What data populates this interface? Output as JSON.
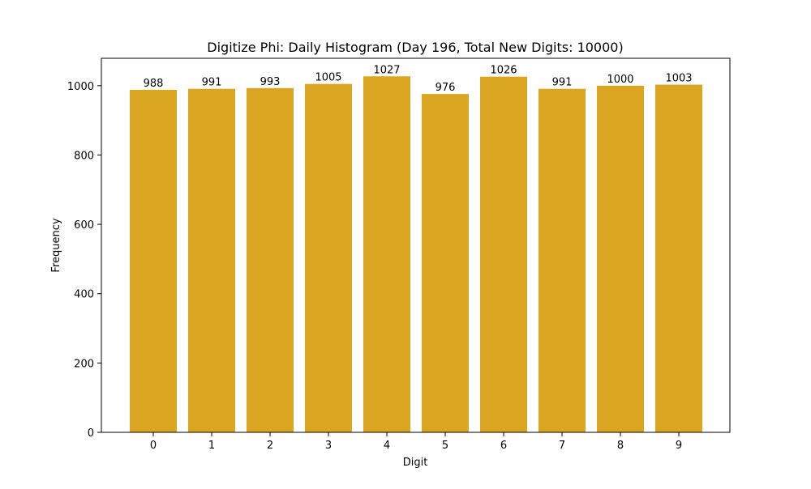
{
  "chart_data": {
    "type": "bar",
    "title": "Digitize Phi: Daily Histogram (Day 196, Total New Digits: 10000)",
    "xlabel": "Digit",
    "ylabel": "Frequency",
    "categories": [
      "0",
      "1",
      "2",
      "3",
      "4",
      "5",
      "6",
      "7",
      "8",
      "9"
    ],
    "values": [
      988,
      991,
      993,
      1005,
      1027,
      976,
      1026,
      991,
      1000,
      1003
    ],
    "ylim": [
      0,
      1079
    ],
    "yticks": [
      0,
      200,
      400,
      600,
      800,
      1000
    ],
    "bar_color": "#DAA520",
    "grid": false,
    "legend": null
  }
}
